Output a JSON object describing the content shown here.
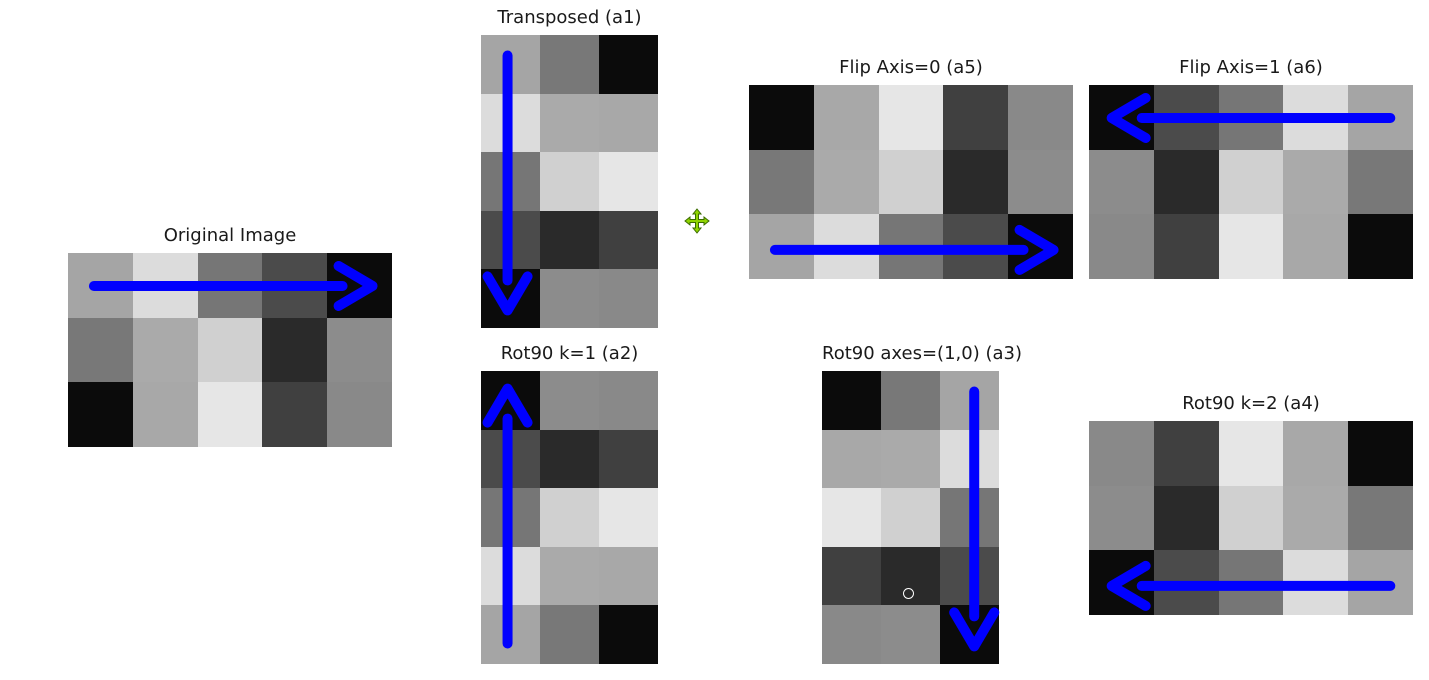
{
  "colors": {
    "arrow": "#0000ff",
    "background": "#ffffff"
  },
  "panels": {
    "original": {
      "title": "Original Image",
      "rows": 3,
      "cols": 5,
      "values": [
        [
          165,
          220,
          118,
          75,
          11
        ],
        [
          120,
          170,
          208,
          42,
          140
        ],
        [
          11,
          168,
          230,
          64,
          137
        ]
      ],
      "arrow": "left-to-right"
    },
    "transposed": {
      "title": "Transposed (a1)",
      "rows": 5,
      "cols": 3,
      "values": [
        [
          165,
          120,
          11
        ],
        [
          220,
          170,
          168
        ],
        [
          118,
          208,
          230
        ],
        [
          75,
          42,
          64
        ],
        [
          11,
          140,
          137
        ]
      ],
      "arrow": "top-to-bottom"
    },
    "flip0": {
      "title": "Flip Axis=0 (a5)",
      "rows": 3,
      "cols": 5,
      "values": [
        [
          11,
          168,
          230,
          64,
          137
        ],
        [
          120,
          170,
          208,
          42,
          140
        ],
        [
          165,
          220,
          118,
          75,
          11
        ]
      ],
      "arrow": "left-to-right"
    },
    "flip1": {
      "title": "Flip Axis=1 (a6)",
      "rows": 3,
      "cols": 5,
      "values": [
        [
          11,
          75,
          118,
          220,
          165
        ],
        [
          140,
          42,
          208,
          170,
          120
        ],
        [
          137,
          64,
          230,
          168,
          11
        ]
      ],
      "arrow": "right-to-left"
    },
    "rot1": {
      "title": "Rot90 k=1 (a2)",
      "rows": 5,
      "cols": 3,
      "values": [
        [
          11,
          140,
          137
        ],
        [
          75,
          42,
          64
        ],
        [
          118,
          208,
          230
        ],
        [
          220,
          170,
          168
        ],
        [
          165,
          120,
          11
        ]
      ],
      "arrow": "bottom-to-top"
    },
    "rot_axes": {
      "title": "Rot90 axes=(1,0) (a3)",
      "rows": 5,
      "cols": 3,
      "values": [
        [
          11,
          120,
          165
        ],
        [
          168,
          170,
          220
        ],
        [
          230,
          208,
          118
        ],
        [
          64,
          42,
          75
        ],
        [
          137,
          140,
          11
        ]
      ],
      "arrow": "top-to-bottom"
    },
    "rot2": {
      "title": "Rot90 k=2 (a4)",
      "rows": 3,
      "cols": 5,
      "values": [
        [
          137,
          64,
          230,
          168,
          11
        ],
        [
          140,
          42,
          208,
          170,
          120
        ],
        [
          11,
          75,
          118,
          220,
          165
        ]
      ],
      "arrow": "right-to-left"
    }
  },
  "icons": {
    "move": "move-arrows-icon",
    "cursor": "cursor-circle-icon"
  }
}
